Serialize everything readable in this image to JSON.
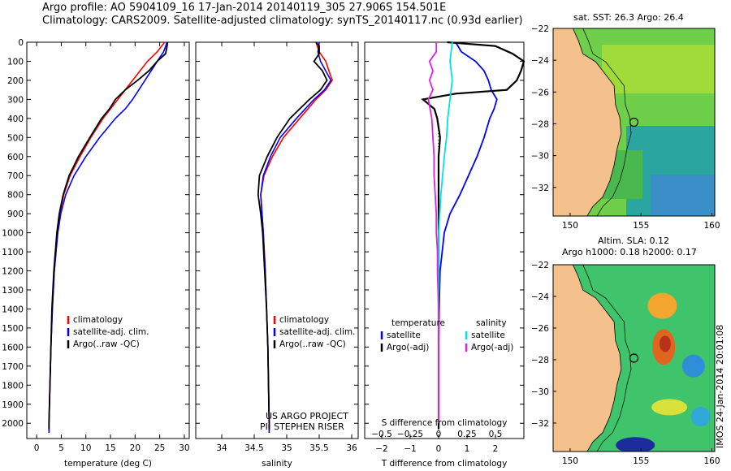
{
  "header": {
    "line1": "Argo profile: AO 5904109_16 17-Jan-2014 20140119_305 27.906S 154.501E",
    "line2": "Climatology: CARS2009. Satellite-adjusted climatology: synTS_20140117.nc (0.93d earlier)"
  },
  "map_sst": {
    "title": "sat. SST: 26.3 Argo: 26.4"
  },
  "map_sla": {
    "title1": "Altim. SLA: 0.12",
    "title2": "Argo h1000: 0.18 h2000: 0.17"
  },
  "stamp": "IMOS 24-Jan-2014 20:01:08",
  "project": {
    "line1": "US ARGO PROJECT",
    "line2": "PI: STEPHEN RISER"
  },
  "colors": {
    "clim": "#ff0000",
    "sat": "#0000ff",
    "argo": "#000000",
    "sat_s": "#00e5e5",
    "argo_s": "#e020e0",
    "land": "#f4c08c"
  },
  "chart_data": [
    {
      "type": "line",
      "title": "",
      "xlabel": "temperature (deg C)",
      "ylabel": "depth",
      "xlim": [
        -2,
        31
      ],
      "ylim": [
        2080,
        0
      ],
      "xticks": [
        0,
        5,
        10,
        15,
        20,
        25,
        30
      ],
      "yticks": [
        0,
        100,
        200,
        300,
        400,
        500,
        600,
        700,
        800,
        900,
        1000,
        1100,
        1200,
        1300,
        1400,
        1500,
        1600,
        1700,
        1800,
        1900,
        2000
      ],
      "legend": [
        "climatology",
        "satellite-adj. clim.",
        "Argo(..raw -QC)"
      ],
      "series": [
        {
          "name": "climatology",
          "color": "red",
          "depth": [
            0,
            50,
            100,
            200,
            300,
            350,
            400,
            500,
            600,
            700,
            800,
            900,
            1000,
            1200,
            1400,
            1600,
            1800,
            2000,
            2050
          ],
          "values": [
            26.0,
            24.5,
            22.5,
            19.5,
            16.5,
            15.0,
            13.5,
            11.0,
            8.8,
            6.8,
            5.5,
            4.7,
            4.2,
            3.6,
            3.2,
            2.9,
            2.7,
            2.5,
            2.5
          ]
        },
        {
          "name": "satellite-adj. clim.",
          "color": "blue",
          "depth": [
            0,
            50,
            100,
            200,
            300,
            350,
            400,
            500,
            600,
            700,
            800,
            900,
            1000,
            1200,
            1400,
            1600,
            1800,
            2000,
            2050
          ],
          "values": [
            26.5,
            25.8,
            24.5,
            22.0,
            19.5,
            18.0,
            16.0,
            12.8,
            10.0,
            7.6,
            5.9,
            4.9,
            4.3,
            3.6,
            3.2,
            2.9,
            2.7,
            2.5,
            2.5
          ]
        },
        {
          "name": "Argo(..raw -QC)",
          "color": "black",
          "depth": [
            0,
            20,
            60,
            100,
            150,
            200,
            250,
            300,
            350,
            400,
            500,
            600,
            700,
            800,
            900,
            1000,
            1200,
            1400,
            1600,
            1800,
            2000,
            2030
          ],
          "values": [
            26.6,
            26.5,
            26.2,
            24.5,
            22.8,
            20.5,
            18.0,
            16.0,
            14.8,
            13.2,
            10.8,
            8.5,
            6.6,
            5.4,
            4.6,
            4.1,
            3.5,
            3.1,
            2.9,
            2.7,
            2.5,
            2.5
          ]
        }
      ]
    },
    {
      "type": "line",
      "title": "",
      "xlabel": "salinity",
      "ylabel": "depth",
      "xlim": [
        33.6,
        36.1
      ],
      "ylim": [
        2080,
        0
      ],
      "xticks": [
        34,
        34.5,
        35,
        35.5,
        36
      ],
      "legend": [
        "climatology",
        "satellite-adj. clim.",
        "Argo(..raw -QC)"
      ],
      "series": [
        {
          "name": "climatology",
          "color": "red",
          "depth": [
            0,
            50,
            100,
            150,
            200,
            250,
            300,
            400,
            500,
            600,
            700,
            800,
            900,
            1000,
            1200,
            1400,
            1600,
            1800,
            2000,
            2050
          ],
          "values": [
            35.45,
            35.5,
            35.6,
            35.65,
            35.7,
            35.6,
            35.45,
            35.2,
            34.95,
            34.78,
            34.65,
            34.6,
            34.62,
            34.64,
            34.67,
            34.69,
            34.71,
            34.72,
            34.73,
            34.73
          ]
        },
        {
          "name": "satellite-adj. clim.",
          "color": "blue",
          "depth": [
            0,
            50,
            100,
            150,
            200,
            250,
            300,
            400,
            500,
            600,
            700,
            800,
            900,
            1000,
            1200,
            1400,
            1600,
            1800,
            2000,
            2050
          ],
          "values": [
            35.5,
            35.48,
            35.52,
            35.6,
            35.68,
            35.58,
            35.42,
            35.15,
            34.9,
            34.75,
            34.64,
            34.6,
            34.62,
            34.64,
            34.67,
            34.69,
            34.71,
            34.72,
            34.73,
            34.73
          ]
        },
        {
          "name": "Argo(..raw -QC)",
          "color": "black",
          "depth": [
            0,
            20,
            60,
            100,
            150,
            200,
            250,
            300,
            400,
            500,
            600,
            700,
            800,
            900,
            1000,
            1200,
            1400,
            1600,
            1800,
            2000,
            2030
          ],
          "values": [
            35.45,
            35.5,
            35.5,
            35.42,
            35.55,
            35.62,
            35.52,
            35.35,
            35.05,
            34.85,
            34.7,
            34.58,
            34.56,
            34.6,
            34.63,
            34.66,
            34.69,
            34.71,
            34.72,
            34.73,
            34.73
          ]
        }
      ]
    },
    {
      "type": "line",
      "title": "",
      "xlabel": "T difference from climatology",
      "xlabel_top": "S difference from climatology",
      "ylabel": "depth",
      "xlim": [
        -2.6,
        3.0
      ],
      "ylim": [
        2080,
        0
      ],
      "xticks": [
        -2,
        -1,
        0,
        1,
        2
      ],
      "xticks_top": [
        -0.5,
        -0.25,
        0,
        0.25,
        0.5
      ],
      "legend_groups": [
        {
          "heading": "temperature",
          "items": [
            "satellite",
            "Argo(-adj)"
          ]
        },
        {
          "heading": "salinity",
          "items": [
            "satellite",
            "Argo(-adj)"
          ]
        }
      ],
      "series": [
        {
          "name": "temperature satellite",
          "color": "blue",
          "depth": [
            0,
            50,
            100,
            150,
            200,
            250,
            300,
            350,
            400,
            500,
            600,
            700,
            800,
            900,
            1000,
            1200,
            1400,
            1600,
            1800,
            2000
          ],
          "values": [
            0.6,
            0.8,
            1.3,
            1.6,
            1.75,
            1.85,
            2.05,
            1.95,
            1.8,
            1.6,
            1.35,
            1.05,
            0.75,
            0.4,
            0.2,
            0.05,
            0.02,
            0.0,
            0.0,
            0.0
          ]
        },
        {
          "name": "temperature Argo(-adj)",
          "color": "black",
          "depth": [
            0,
            20,
            60,
            100,
            150,
            200,
            250,
            270,
            300,
            350,
            400,
            500,
            600,
            800,
            1000,
            1200,
            1400,
            1600,
            1800,
            2000,
            2030
          ],
          "values": [
            0.3,
            2.0,
            2.6,
            3.0,
            2.9,
            2.75,
            2.4,
            0.6,
            -0.55,
            -0.15,
            -0.05,
            0.05,
            0.0,
            0.0,
            0.0,
            0.0,
            0.0,
            0.0,
            0.0,
            0.0,
            0.0
          ]
        },
        {
          "name": "salinity satellite",
          "color": "cyan",
          "depth": [
            0,
            100,
            200,
            300,
            400,
            500,
            600,
            800,
            1000,
            1200,
            1400,
            1600,
            1800,
            2000
          ],
          "values": [
            0.12,
            0.1,
            0.12,
            0.1,
            0.08,
            0.07,
            0.05,
            0.02,
            0.0,
            0.0,
            0.0,
            0.0,
            0.0,
            0.0
          ]
        },
        {
          "name": "salinity Argo(-adj)",
          "color": "magenta",
          "depth": [
            0,
            50,
            100,
            150,
            200,
            250,
            300,
            400,
            500,
            600,
            700,
            800,
            900,
            1000,
            1100,
            1200,
            1400,
            1600,
            1800,
            2000
          ],
          "values": [
            -0.02,
            -0.02,
            -0.08,
            -0.05,
            -0.08,
            -0.05,
            -0.09,
            -0.06,
            -0.05,
            -0.04,
            -0.04,
            -0.03,
            -0.02,
            -0.02,
            -0.01,
            -0.01,
            0.0,
            0.0,
            0.0,
            0.0
          ]
        }
      ]
    },
    {
      "type": "heatmap",
      "title": "sat. SST: 26.3 Argo: 26.4",
      "xticks": [
        150,
        155,
        160
      ],
      "yticks": [
        -22,
        -24,
        -26,
        -28,
        -30,
        -32
      ],
      "xlim": [
        148.8,
        160.2
      ],
      "ylim": [
        -33.8,
        -22
      ],
      "argo_position": [
        154.5,
        -27.9
      ]
    },
    {
      "type": "heatmap",
      "title": "Altim. SLA: 0.12",
      "xticks": [
        150,
        155,
        160
      ],
      "yticks": [
        -22,
        -24,
        -26,
        -28,
        -30,
        -32
      ],
      "xlim": [
        148.8,
        160.2
      ],
      "ylim": [
        -33.8,
        -22
      ],
      "argo_position": [
        154.5,
        -27.9
      ]
    }
  ]
}
